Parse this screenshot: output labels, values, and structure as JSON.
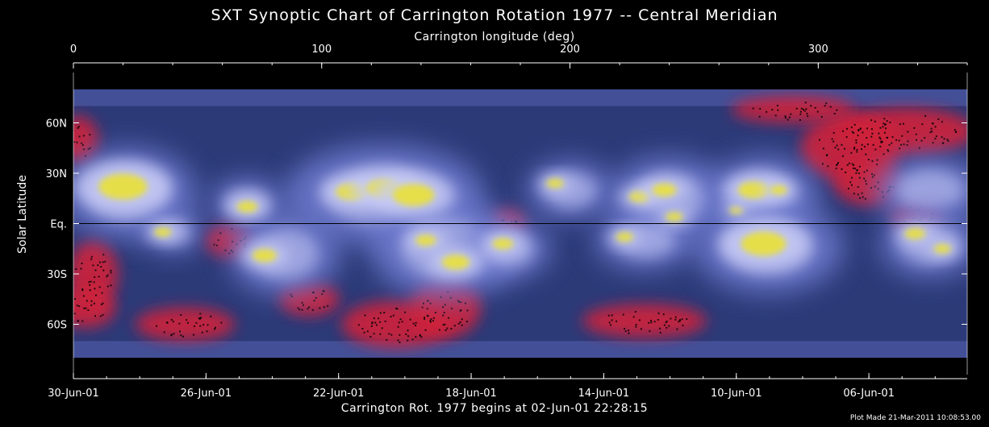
{
  "chart_data": {
    "type": "heatmap",
    "title": "SXT Synoptic Chart of Carrington Rotation 1977 -- Central Meridian",
    "x_top_label": "Carrington longitude (deg)",
    "x_bottom_label": "Carrington Rot. 1977 begins at 02-Jun-01 22:28:15",
    "ylabel": "Solar Latitude",
    "footer": "Plot Made 21-Mar-2011 10:08:53.00",
    "top_axis": {
      "range": [
        0,
        360
      ],
      "ticks": [
        {
          "value": 0,
          "label": "0"
        },
        {
          "value": 100,
          "label": "100"
        },
        {
          "value": 200,
          "label": "200"
        },
        {
          "value": 300,
          "label": "300"
        }
      ]
    },
    "y_axis": {
      "range": [
        -90,
        90
      ],
      "ticks": [
        {
          "value": 60,
          "label": "60N"
        },
        {
          "value": 30,
          "label": "30N"
        },
        {
          "value": 0,
          "label": "Eq."
        },
        {
          "value": -30,
          "label": "30S"
        },
        {
          "value": -60,
          "label": "60S"
        }
      ]
    },
    "bottom_axis": {
      "ticks": [
        {
          "value": 0,
          "label": "30-Jun-01"
        },
        {
          "value": 53.4,
          "label": "26-Jun-01"
        },
        {
          "value": 106.8,
          "label": "22-Jun-01"
        },
        {
          "value": 160.2,
          "label": "18-Jun-01"
        },
        {
          "value": 213.6,
          "label": "14-Jun-01"
        },
        {
          "value": 267,
          "label": "10-Jun-01"
        },
        {
          "value": 320.4,
          "label": "06-Jun-01"
        }
      ]
    },
    "colors": {
      "background": "#000000",
      "quiet": "#2c3a78",
      "diffuse": "#6f7bd0",
      "bright": "#c9ccf6",
      "active": "#e8e040",
      "hole": "#d0203a",
      "equator": "#000000"
    },
    "active_regions": [
      {
        "lon": 20,
        "lat": 22,
        "size": 14
      },
      {
        "lon": 70,
        "lat": 10,
        "size": 6
      },
      {
        "lon": 36,
        "lat": -5,
        "size": 5
      },
      {
        "lon": 77,
        "lat": -19,
        "size": 7
      },
      {
        "lon": 112,
        "lat": 19,
        "size": 9
      },
      {
        "lon": 125,
        "lat": 21,
        "size": 10
      },
      {
        "lon": 137,
        "lat": 17,
        "size": 12
      },
      {
        "lon": 142,
        "lat": -10,
        "size": 6
      },
      {
        "lon": 154,
        "lat": -23,
        "size": 8
      },
      {
        "lon": 173,
        "lat": -12,
        "size": 6
      },
      {
        "lon": 194,
        "lat": 24,
        "size": 5
      },
      {
        "lon": 228,
        "lat": 16,
        "size": 6
      },
      {
        "lon": 238,
        "lat": 20,
        "size": 7
      },
      {
        "lon": 242,
        "lat": 4,
        "size": 5
      },
      {
        "lon": 267,
        "lat": 8,
        "size": 4
      },
      {
        "lon": 274,
        "lat": 20,
        "size": 9
      },
      {
        "lon": 284,
        "lat": 20,
        "size": 5
      },
      {
        "lon": 278,
        "lat": -12,
        "size": 13
      },
      {
        "lon": 339,
        "lat": -6,
        "size": 6
      },
      {
        "lon": 350,
        "lat": -15,
        "size": 5
      },
      {
        "lon": 222,
        "lat": -8,
        "size": 5
      }
    ],
    "coronal_holes": [
      {
        "lon": 335,
        "lat": 55,
        "rlon": 28,
        "rlat": 14
      },
      {
        "lon": 313,
        "lat": 45,
        "rlon": 20,
        "rlat": 20
      },
      {
        "lon": 320,
        "lat": 25,
        "rlon": 14,
        "rlat": 14
      },
      {
        "lon": 340,
        "lat": 5,
        "rlon": 10,
        "rlat": 10
      },
      {
        "lon": 290,
        "lat": 68,
        "rlon": 25,
        "rlat": 8
      },
      {
        "lon": 130,
        "lat": -60,
        "rlon": 22,
        "rlat": 14
      },
      {
        "lon": 150,
        "lat": -50,
        "rlon": 14,
        "rlat": 18
      },
      {
        "lon": 8,
        "lat": -30,
        "rlon": 10,
        "rlat": 20
      },
      {
        "lon": 5,
        "lat": -50,
        "rlon": 12,
        "rlat": 12
      },
      {
        "lon": 63,
        "lat": -10,
        "rlon": 10,
        "rlat": 10
      },
      {
        "lon": 175,
        "lat": 0,
        "rlon": 7,
        "rlat": 8
      },
      {
        "lon": 45,
        "lat": -60,
        "rlon": 20,
        "rlat": 10
      },
      {
        "lon": 230,
        "lat": -58,
        "rlon": 25,
        "rlat": 10
      },
      {
        "lon": 2,
        "lat": 50,
        "rlon": 8,
        "rlat": 14
      },
      {
        "lon": 95,
        "lat": -45,
        "rlon": 12,
        "rlat": 10
      }
    ],
    "bright_regions": [
      {
        "lon": 22,
        "lat": 18,
        "rlon": 22,
        "rlat": 22
      },
      {
        "lon": 125,
        "lat": 17,
        "rlon": 32,
        "rlat": 24
      },
      {
        "lon": 150,
        "lat": -15,
        "rlon": 24,
        "rlat": 24
      },
      {
        "lon": 85,
        "lat": -18,
        "rlon": 18,
        "rlat": 20
      },
      {
        "lon": 240,
        "lat": 15,
        "rlon": 20,
        "rlat": 20
      },
      {
        "lon": 278,
        "lat": 18,
        "rlon": 18,
        "rlat": 18
      },
      {
        "lon": 280,
        "lat": -14,
        "rlon": 24,
        "rlat": 22
      },
      {
        "lon": 200,
        "lat": 20,
        "rlon": 14,
        "rlat": 14
      },
      {
        "lon": 345,
        "lat": 20,
        "rlon": 18,
        "rlat": 16
      },
      {
        "lon": 345,
        "lat": -12,
        "rlon": 16,
        "rlat": 16
      },
      {
        "lon": 40,
        "lat": -5,
        "rlon": 10,
        "rlat": 10
      },
      {
        "lon": 70,
        "lat": 12,
        "rlon": 12,
        "rlat": 12
      },
      {
        "lon": 175,
        "lat": -15,
        "rlon": 14,
        "rlat": 14
      },
      {
        "lon": 230,
        "lat": -10,
        "rlon": 16,
        "rlat": 14
      }
    ]
  }
}
